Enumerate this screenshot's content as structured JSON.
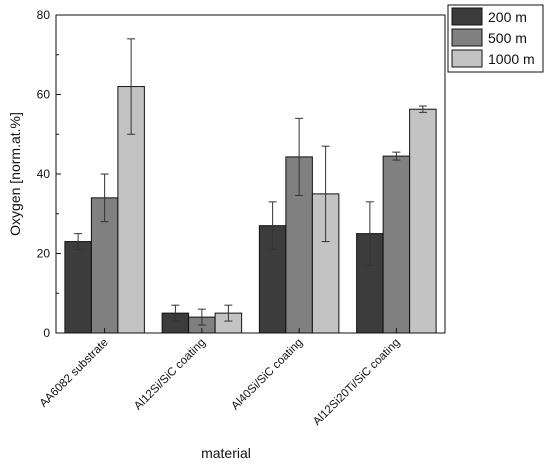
{
  "chart_data": {
    "type": "bar",
    "xlabel": "material",
    "ylabel": "Oxygen [norm.at.%]",
    "ylim": [
      0,
      80
    ],
    "yticks": [
      0,
      20,
      40,
      60,
      80
    ],
    "grid": false,
    "legend_position": "top-right",
    "categories": [
      "AA6082 substrate",
      "Al12Si/SiC coating",
      "Al40Si/SiC coating",
      "Al12Si20Ti/SiC coating"
    ],
    "series": [
      {
        "name": "200 m",
        "color": "#3c3c3c",
        "values": [
          23,
          5,
          27,
          25
        ],
        "errors": [
          2,
          2,
          6,
          8
        ]
      },
      {
        "name": "500 m",
        "color": "#808080",
        "values": [
          34,
          4,
          44.3,
          44.5
        ],
        "errors": [
          6,
          2,
          9.7,
          1
        ]
      },
      {
        "name": "1000 m",
        "color": "#c3c3c3",
        "values": [
          62,
          5,
          35,
          56.3
        ],
        "errors": [
          12,
          2,
          12,
          0.8
        ]
      }
    ]
  }
}
